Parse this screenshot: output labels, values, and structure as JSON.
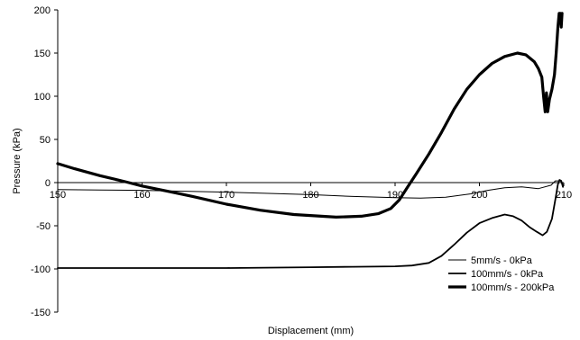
{
  "chart_data": {
    "type": "line",
    "xlabel": "Displacement (mm)",
    "ylabel": "Pressure (kPa)",
    "xlim": [
      150,
      210
    ],
    "ylim": [
      -150,
      200
    ],
    "x_ticks": [
      "150",
      "160",
      "170",
      "180",
      "190",
      "200",
      "210"
    ],
    "y_ticks": [
      "200",
      "150",
      "100",
      "50",
      "0",
      "-50",
      "-100",
      "-150"
    ],
    "grid": false,
    "legend_position": "bottom-right",
    "series": [
      {
        "name": "5mm/s - 0kPa",
        "color": "#000000",
        "style": "thin",
        "points": [
          [
            150,
            -8
          ],
          [
            155,
            -8.5
          ],
          [
            160,
            -9
          ],
          [
            165,
            -10
          ],
          [
            170,
            -11
          ],
          [
            175,
            -12.5
          ],
          [
            180,
            -14
          ],
          [
            185,
            -16
          ],
          [
            190,
            -17.5
          ],
          [
            193,
            -18
          ],
          [
            196,
            -17
          ],
          [
            199,
            -13
          ],
          [
            201,
            -9
          ],
          [
            203,
            -6
          ],
          [
            205,
            -5
          ],
          [
            207,
            -7
          ],
          [
            208.5,
            -3
          ],
          [
            209,
            2
          ],
          [
            209.6,
            2
          ],
          [
            209.9,
            -2
          ]
        ]
      },
      {
        "name": "100mm/s - 0kPa",
        "color": "#000000",
        "style": "medium",
        "points": [
          [
            150,
            -99
          ],
          [
            160,
            -99
          ],
          [
            170,
            -99
          ],
          [
            180,
            -98
          ],
          [
            185,
            -97.5
          ],
          [
            190,
            -97
          ],
          [
            192,
            -96
          ],
          [
            194,
            -93
          ],
          [
            195.5,
            -85
          ],
          [
            197,
            -72
          ],
          [
            198.5,
            -58
          ],
          [
            200,
            -47
          ],
          [
            201.5,
            -41
          ],
          [
            203,
            -37
          ],
          [
            204,
            -39
          ],
          [
            205,
            -44
          ],
          [
            206,
            -52
          ],
          [
            206.8,
            -57
          ],
          [
            207.5,
            -61
          ],
          [
            208,
            -57
          ],
          [
            208.6,
            -42
          ],
          [
            209,
            -20
          ],
          [
            209.3,
            -2
          ],
          [
            209.5,
            3
          ],
          [
            209.7,
            2
          ],
          [
            209.9,
            -5
          ]
        ]
      },
      {
        "name": "100mm/s - 200kPa",
        "color": "#000000",
        "style": "thick",
        "points": [
          [
            150,
            22
          ],
          [
            152,
            16
          ],
          [
            155,
            8
          ],
          [
            158,
            1
          ],
          [
            160,
            -4
          ],
          [
            163,
            -10
          ],
          [
            166,
            -16
          ],
          [
            170,
            -25
          ],
          [
            174,
            -32
          ],
          [
            178,
            -37
          ],
          [
            183,
            -40
          ],
          [
            186,
            -39
          ],
          [
            188,
            -36
          ],
          [
            189.5,
            -30
          ],
          [
            190.5,
            -20
          ],
          [
            191.5,
            -5
          ],
          [
            192.5,
            10
          ],
          [
            194,
            33
          ],
          [
            195.5,
            58
          ],
          [
            197,
            85
          ],
          [
            198.5,
            108
          ],
          [
            200,
            125
          ],
          [
            201.5,
            138
          ],
          [
            203,
            146
          ],
          [
            204.5,
            150
          ],
          [
            205.5,
            148
          ],
          [
            206.5,
            140
          ],
          [
            207,
            132
          ],
          [
            207.4,
            122
          ],
          [
            207.6,
            100
          ],
          [
            207.8,
            82
          ],
          [
            207.95,
            104
          ],
          [
            208.1,
            82
          ],
          [
            208.3,
            96
          ],
          [
            208.6,
            108
          ],
          [
            208.9,
            125
          ],
          [
            209.1,
            150
          ],
          [
            209.3,
            180
          ],
          [
            209.45,
            196
          ],
          [
            209.6,
            196
          ],
          [
            209.7,
            180
          ],
          [
            209.8,
            196
          ]
        ]
      }
    ]
  }
}
